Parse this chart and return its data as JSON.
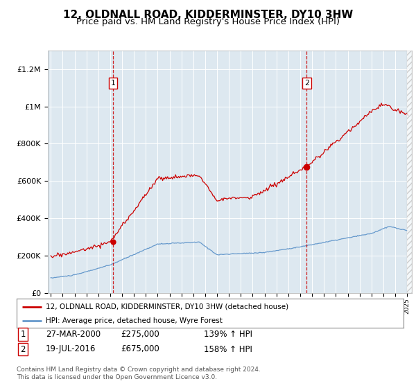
{
  "title": "12, OLDNALL ROAD, KIDDERMINSTER, DY10 3HW",
  "subtitle": "Price paid vs. HM Land Registry's House Price Index (HPI)",
  "title_fontsize": 11,
  "subtitle_fontsize": 9.5,
  "background_color": "#ffffff",
  "plot_bg_color": "#dde8f0",
  "red_line_color": "#cc0000",
  "blue_line_color": "#6699cc",
  "sale1_date_num": 2000.24,
  "sale1_price": 275000,
  "sale2_date_num": 2016.55,
  "sale2_price": 675000,
  "ylim": [
    0,
    1300000
  ],
  "xlim": [
    1994.75,
    2025.4
  ],
  "legend_red": "12, OLDNALL ROAD, KIDDERMINSTER, DY10 3HW (detached house)",
  "legend_blue": "HPI: Average price, detached house, Wyre Forest",
  "table_row1": [
    "1",
    "27-MAR-2000",
    "£275,000",
    "139% ↑ HPI"
  ],
  "table_row2": [
    "2",
    "19-JUL-2016",
    "£675,000",
    "158% ↑ HPI"
  ],
  "footnote": "Contains HM Land Registry data © Crown copyright and database right 2024.\nThis data is licensed under the Open Government Licence v3.0.",
  "yticks": [
    0,
    200000,
    400000,
    600000,
    800000,
    1000000,
    1200000
  ],
  "ytick_labels": [
    "£0",
    "£200K",
    "£400K",
    "£600K",
    "£800K",
    "£1M",
    "£1.2M"
  ]
}
